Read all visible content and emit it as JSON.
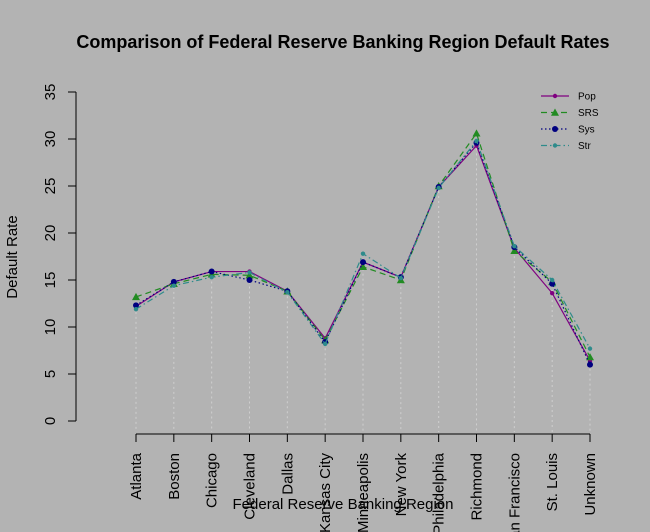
{
  "chart_data": {
    "type": "line",
    "title": "Comparison of Federal Reserve Banking Region Default Rates",
    "xlabel": "Federal Reserve Banking Region",
    "ylabel": "Default Rate",
    "ylim": [
      0,
      35
    ],
    "yticks": [
      0,
      5,
      10,
      15,
      20,
      25,
      30,
      35
    ],
    "categories": [
      "Atlanta",
      "Boston",
      "Chicago",
      "Cleveland",
      "Dallas",
      "Kansas City",
      "Minneapolis",
      "New York",
      "Philadelphia",
      "Richmond",
      "San Francisco",
      "St. Louis",
      "Unknown"
    ],
    "legend_position": "top-right",
    "grid": false,
    "series": [
      {
        "name": "Pop",
        "color": "#800080",
        "dash": "",
        "marker": "circle-small",
        "values": [
          12.2,
          14.8,
          15.9,
          15.9,
          13.8,
          8.8,
          16.9,
          15.3,
          24.9,
          29.3,
          18.4,
          13.6,
          6.4
        ]
      },
      {
        "name": "SRS",
        "color": "#228B22",
        "dash": "6,4",
        "marker": "triangle",
        "values": [
          13.2,
          14.6,
          15.6,
          15.5,
          13.8,
          8.6,
          16.4,
          15.0,
          25.0,
          30.6,
          18.1,
          14.8,
          6.8
        ]
      },
      {
        "name": "Sys",
        "color": "#00007f",
        "dash": "1.5,2.5",
        "marker": "circle",
        "values": [
          12.3,
          14.8,
          15.9,
          15.0,
          13.8,
          8.4,
          16.9,
          15.3,
          24.9,
          29.6,
          18.5,
          14.6,
          6.0
        ]
      },
      {
        "name": "Str",
        "color": "#2e8b8b",
        "dash": "6,3,1.5,3",
        "marker": "circle-small",
        "values": [
          11.9,
          14.4,
          15.3,
          15.8,
          13.7,
          8.2,
          17.8,
          15.2,
          24.8,
          29.8,
          18.6,
          15.0,
          7.7
        ]
      }
    ]
  }
}
